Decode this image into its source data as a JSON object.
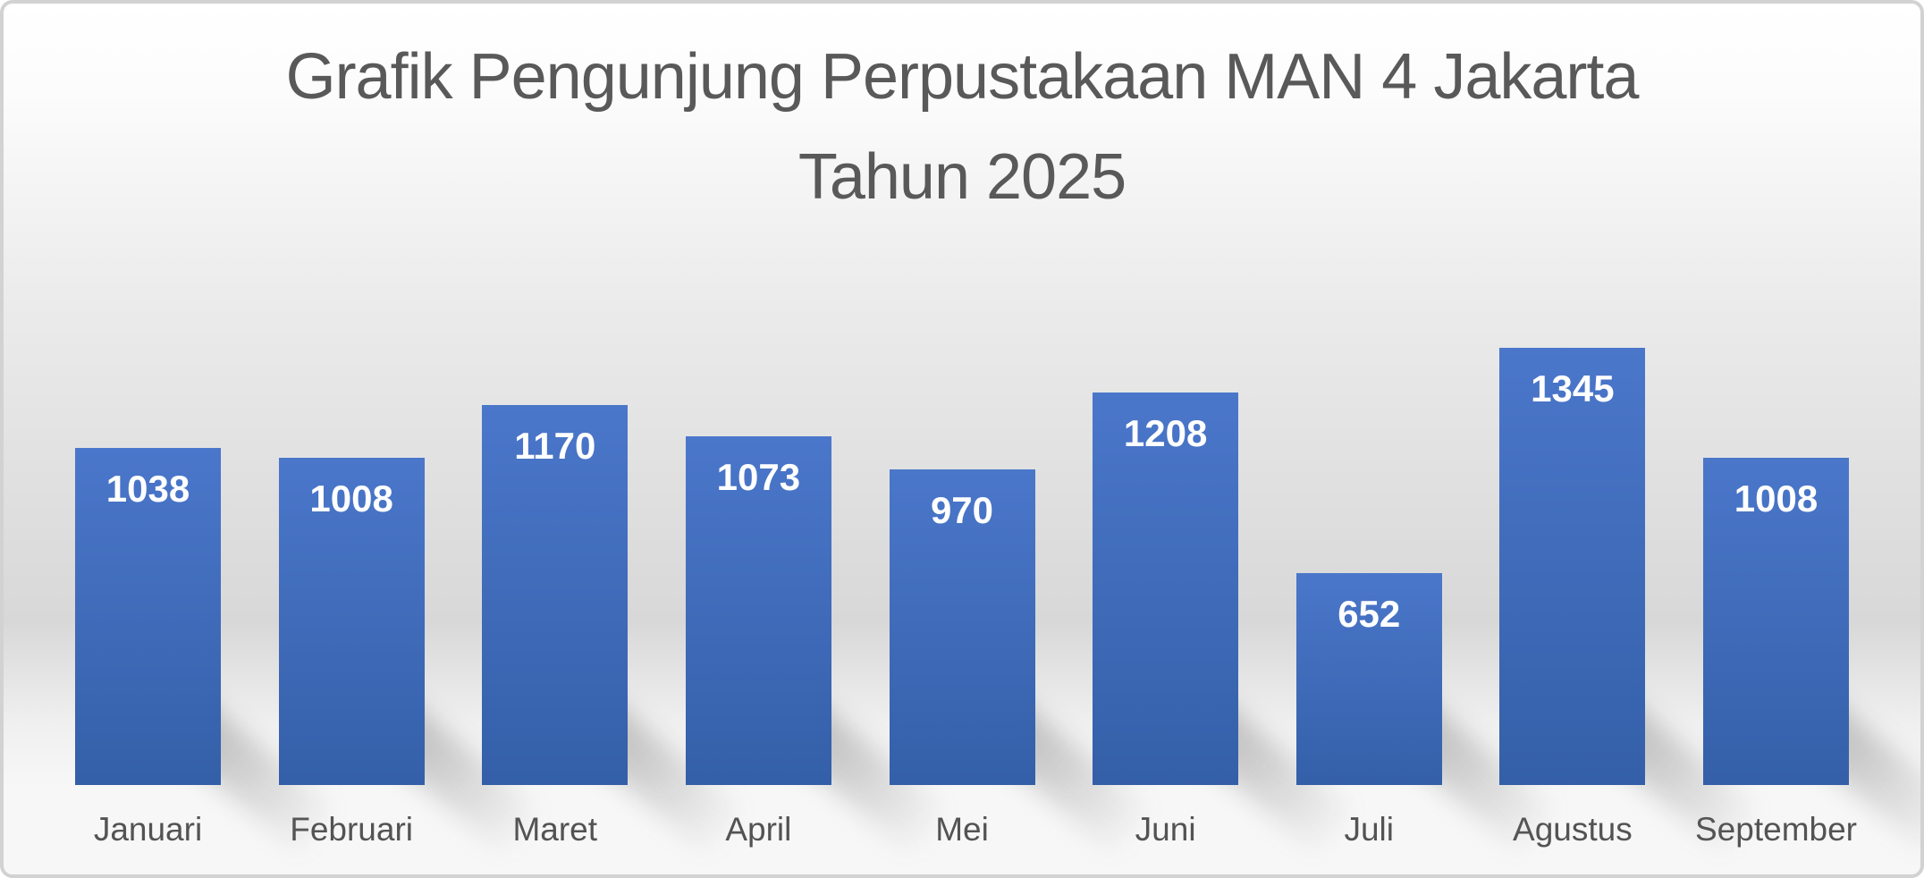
{
  "chart_data": {
    "type": "bar",
    "title": "Grafik Pengunjung Perpustakaan MAN 4 Jakarta Tahun 2025",
    "title_lines": [
      "Grafik Pengunjung Perpustakaan MAN 4 Jakarta",
      "Tahun 2025"
    ],
    "categories": [
      "Januari",
      "Februari",
      "Maret",
      "April",
      "Mei",
      "Juni",
      "Juli",
      "Agustus",
      "September"
    ],
    "values": [
      1038,
      1008,
      1170,
      1073,
      970,
      1208,
      652,
      1345,
      1008
    ],
    "xlabel": "",
    "ylabel": "",
    "ylim": [
      0,
      1345
    ],
    "grid": false,
    "legend": null,
    "axes_visible": false,
    "data_labels": true
  },
  "styles": {
    "bar_gradient_top": "#4b77cb",
    "bar_gradient_bottom": "#345fa8",
    "title_color": "#595959",
    "category_label_color": "#535353",
    "value_label_color": "#ffffff",
    "frame_border_color": "#d2d2d2"
  }
}
